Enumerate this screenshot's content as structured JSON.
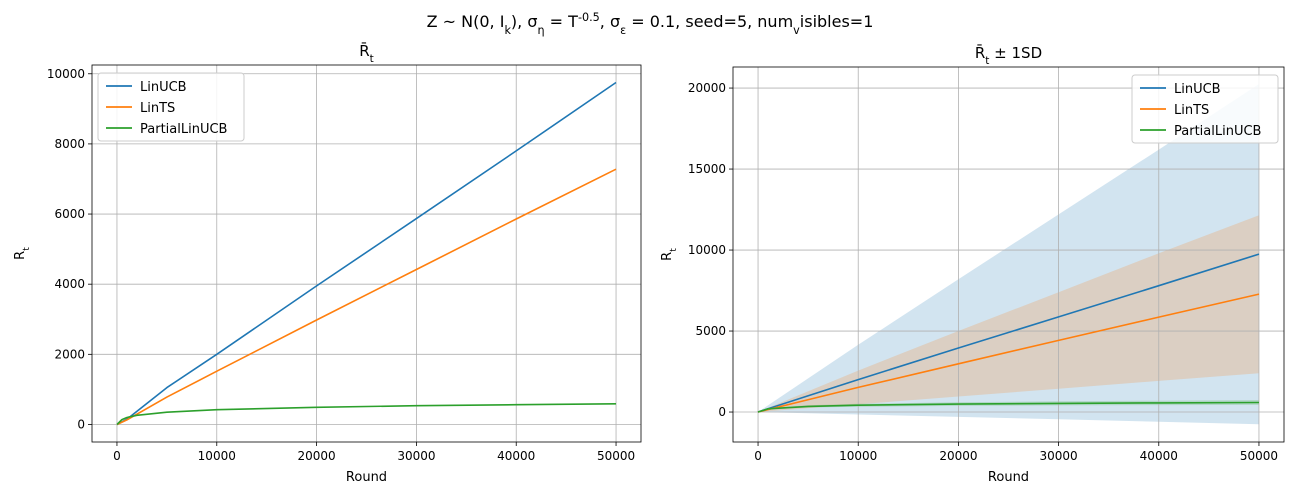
{
  "suptitle": "Z ~ N(0, I_k), σ_η = T^{-0.5}, σ_ε = 0.1, seed=5, num_visibles=1",
  "chart_data": [
    {
      "type": "line",
      "title": "R̄_t",
      "xlabel": "Round",
      "ylabel": "R_t",
      "xlim": [
        -2500,
        52500
      ],
      "ylim": [
        -500,
        10250
      ],
      "xticks": [
        0,
        10000,
        20000,
        30000,
        40000,
        50000
      ],
      "yticks": [
        0,
        2000,
        4000,
        6000,
        8000,
        10000
      ],
      "grid": true,
      "legend_position": "upper-left",
      "series": [
        {
          "name": "LinUCB",
          "color": "#1f77b4",
          "x": [
            0,
            1000,
            5000,
            10000,
            20000,
            30000,
            40000,
            50000
          ],
          "y": [
            0,
            150,
            1050,
            2000,
            3950,
            5870,
            7800,
            9750
          ]
        },
        {
          "name": "LinTS",
          "color": "#ff7f0e",
          "x": [
            0,
            1000,
            5000,
            10000,
            20000,
            30000,
            40000,
            50000
          ],
          "y": [
            0,
            130,
            780,
            1520,
            2980,
            4420,
            5860,
            7280
          ]
        },
        {
          "name": "PartialLinUCB",
          "color": "#2ca02c",
          "x": [
            0,
            500,
            1000,
            2000,
            5000,
            10000,
            20000,
            30000,
            40000,
            50000
          ],
          "y": [
            0,
            140,
            200,
            260,
            350,
            420,
            490,
            535,
            565,
            590
          ]
        }
      ]
    },
    {
      "type": "line",
      "title": "R̄_t ± 1SD",
      "xlabel": "Round",
      "ylabel": "R_t",
      "xlim": [
        -2500,
        52500
      ],
      "ylim": [
        -1850,
        21300
      ],
      "xticks": [
        0,
        10000,
        20000,
        30000,
        40000,
        50000
      ],
      "yticks": [
        0,
        5000,
        10000,
        15000,
        20000
      ],
      "grid": true,
      "legend_position": "upper-right",
      "series": [
        {
          "name": "LinUCB",
          "color": "#1f77b4",
          "x": [
            0,
            10000,
            20000,
            30000,
            40000,
            50000
          ],
          "y": [
            0,
            2000,
            3950,
            5870,
            7800,
            9750
          ],
          "lower": [
            0,
            -150,
            -300,
            -450,
            -600,
            -750
          ],
          "upper": [
            0,
            4150,
            8200,
            12200,
            16200,
            20250
          ]
        },
        {
          "name": "LinTS",
          "color": "#ff7f0e",
          "x": [
            0,
            10000,
            20000,
            30000,
            40000,
            50000
          ],
          "y": [
            0,
            1520,
            2980,
            4420,
            5860,
            7280
          ],
          "lower": [
            0,
            480,
            960,
            1440,
            1920,
            2400
          ],
          "upper": [
            0,
            2560,
            5000,
            7400,
            9800,
            12150
          ]
        },
        {
          "name": "PartialLinUCB",
          "color": "#2ca02c",
          "x": [
            0,
            1000,
            5000,
            10000,
            20000,
            30000,
            40000,
            50000
          ],
          "y": [
            0,
            200,
            350,
            420,
            490,
            535,
            565,
            590
          ],
          "lower": [
            0,
            160,
            280,
            330,
            380,
            410,
            430,
            440
          ],
          "upper": [
            0,
            240,
            420,
            510,
            600,
            660,
            700,
            740
          ]
        }
      ]
    }
  ]
}
